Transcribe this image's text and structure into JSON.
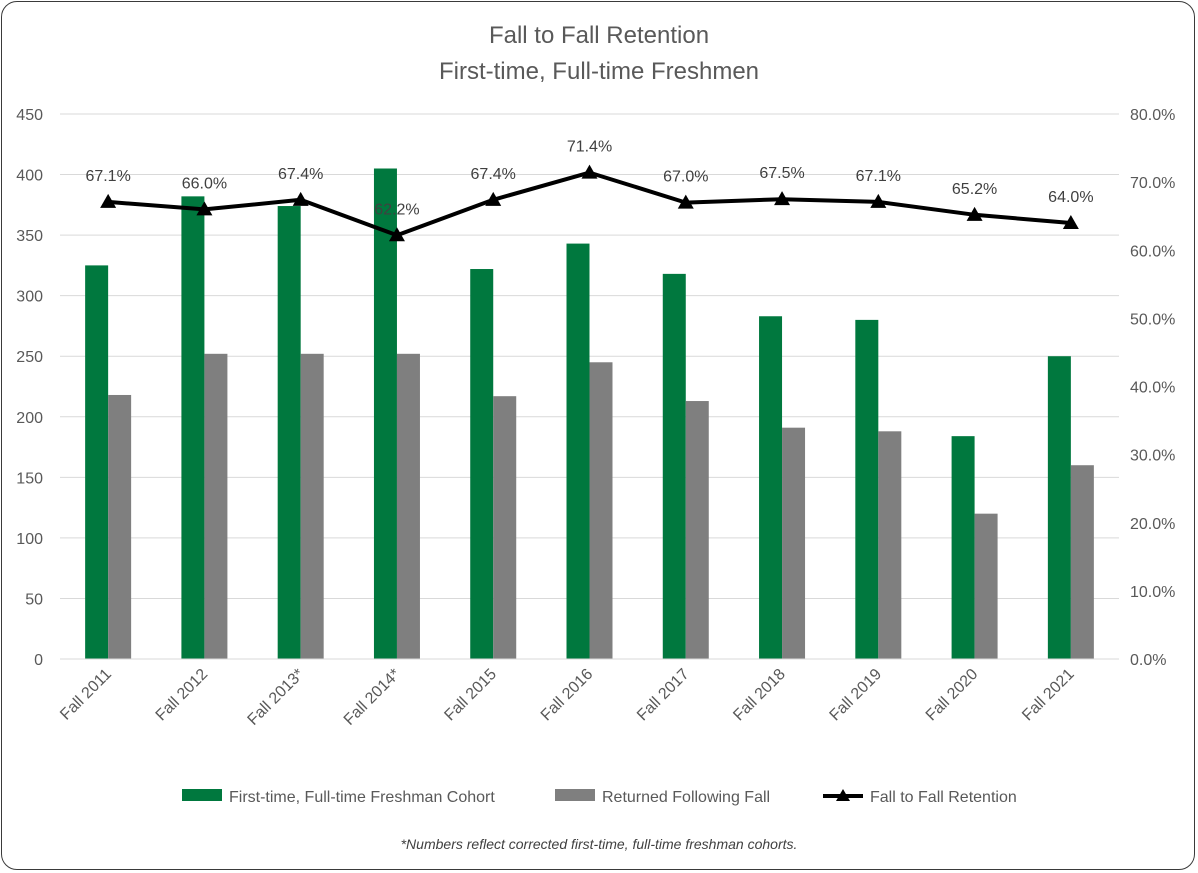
{
  "chart_data": {
    "type": "bar",
    "title": "Fall to Fall Retention",
    "subtitle": "First-time, Full-time Freshmen",
    "categories": [
      "Fall 2011",
      "Fall 2012",
      "Fall 2013*",
      "Fall 2014*",
      "Fall 2015",
      "Fall 2016",
      "Fall 2017",
      "Fall 2018",
      "Fall 2019",
      "Fall 2020",
      "Fall 2021"
    ],
    "series": [
      {
        "name": "First-time, Full-time Freshman Cohort",
        "type": "bar",
        "axis": "left",
        "color": "#00783E",
        "values": [
          325,
          382,
          374,
          405,
          322,
          343,
          318,
          283,
          280,
          184,
          250
        ]
      },
      {
        "name": "Returned Following Fall",
        "type": "bar",
        "axis": "left",
        "color": "#7F7F7F",
        "values": [
          218,
          252,
          252,
          252,
          217,
          245,
          213,
          191,
          188,
          120,
          160
        ]
      },
      {
        "name": "Fall to Fall Retention",
        "type": "line",
        "axis": "right",
        "color": "#000000",
        "marker": "triangle",
        "values": [
          67.1,
          66.0,
          67.4,
          62.2,
          67.4,
          71.4,
          67.0,
          67.5,
          67.1,
          65.2,
          64.0
        ],
        "labels": [
          "67.1%",
          "66.0%",
          "67.4%",
          "62.2%",
          "67.4%",
          "71.4%",
          "67.0%",
          "67.5%",
          "67.1%",
          "65.2%",
          "64.0%"
        ]
      }
    ],
    "left_axis": {
      "ylim": [
        0,
        450
      ],
      "ticks": [
        "0",
        "50",
        "100",
        "150",
        "200",
        "250",
        "300",
        "350",
        "400",
        "450"
      ]
    },
    "right_axis": {
      "ylim": [
        0,
        80
      ],
      "ticks": [
        "0.0%",
        "10.0%",
        "20.0%",
        "30.0%",
        "40.0%",
        "50.0%",
        "60.0%",
        "70.0%",
        "80.0%"
      ]
    },
    "grid": true,
    "legend_position": "bottom",
    "footnote": "*Numbers reflect corrected first-time, full-time freshman cohorts."
  }
}
